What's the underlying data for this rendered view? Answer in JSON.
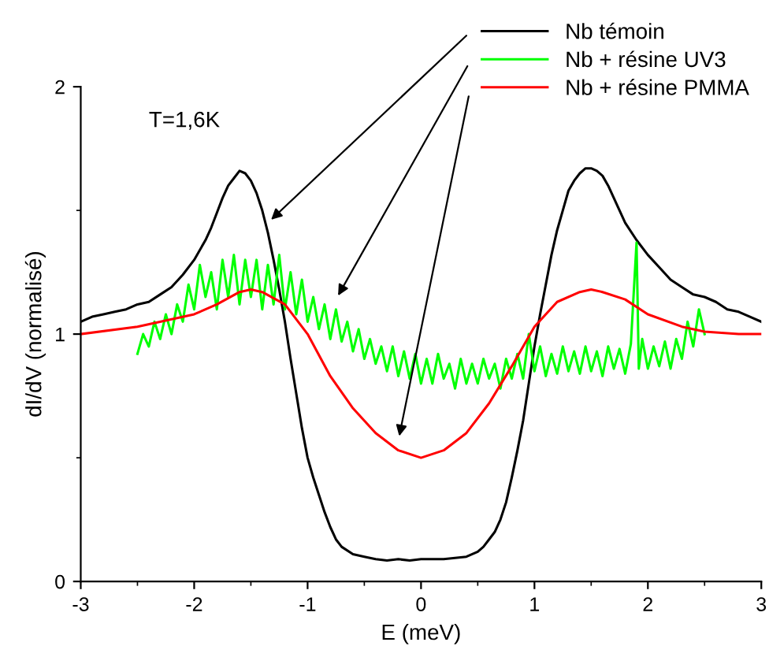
{
  "chart_data": {
    "type": "line",
    "xlabel": "E (meV)",
    "ylabel": "dI/dV (normalisé)",
    "annotations": [
      "T=1,6K"
    ],
    "xlim": [
      -3,
      3
    ],
    "xticks": [
      -3,
      -2,
      -1,
      0,
      1,
      2,
      3
    ],
    "ylim": [
      0,
      2
    ],
    "yticks": [
      0,
      1,
      2
    ],
    "grid": false,
    "legend": "top right",
    "marker": "none",
    "line_style": "solid",
    "series": [
      {
        "name": "Nb témoin",
        "color": "#000000",
        "x": [
          -3,
          -2.9,
          -2.8,
          -2.7,
          -2.6,
          -2.5,
          -2.4,
          -2.3,
          -2.2,
          -2.1,
          -2.0,
          -1.9,
          -1.85,
          -1.8,
          -1.75,
          -1.7,
          -1.65,
          -1.6,
          -1.55,
          -1.5,
          -1.45,
          -1.4,
          -1.35,
          -1.3,
          -1.25,
          -1.2,
          -1.15,
          -1.1,
          -1.05,
          -1.0,
          -0.95,
          -0.9,
          -0.85,
          -0.8,
          -0.75,
          -0.7,
          -0.6,
          -0.5,
          -0.4,
          -0.3,
          -0.2,
          -0.1,
          0,
          0.1,
          0.2,
          0.3,
          0.4,
          0.5,
          0.55,
          0.6,
          0.65,
          0.7,
          0.75,
          0.8,
          0.85,
          0.9,
          0.95,
          1.0,
          1.05,
          1.1,
          1.15,
          1.2,
          1.25,
          1.3,
          1.35,
          1.4,
          1.45,
          1.5,
          1.55,
          1.6,
          1.65,
          1.7,
          1.75,
          1.8,
          1.9,
          2.0,
          2.1,
          2.2,
          2.3,
          2.4,
          2.5,
          2.6,
          2.7,
          2.8,
          2.9,
          3.0
        ],
        "values": [
          1.05,
          1.07,
          1.08,
          1.09,
          1.1,
          1.12,
          1.13,
          1.16,
          1.19,
          1.24,
          1.3,
          1.38,
          1.43,
          1.49,
          1.55,
          1.6,
          1.63,
          1.66,
          1.65,
          1.62,
          1.57,
          1.5,
          1.41,
          1.3,
          1.18,
          1.05,
          0.9,
          0.76,
          0.62,
          0.5,
          0.42,
          0.35,
          0.28,
          0.22,
          0.17,
          0.14,
          0.11,
          0.1,
          0.09,
          0.085,
          0.09,
          0.085,
          0.09,
          0.09,
          0.09,
          0.095,
          0.1,
          0.12,
          0.14,
          0.17,
          0.2,
          0.25,
          0.32,
          0.42,
          0.53,
          0.65,
          0.8,
          0.95,
          1.08,
          1.2,
          1.32,
          1.42,
          1.5,
          1.58,
          1.62,
          1.65,
          1.67,
          1.67,
          1.66,
          1.64,
          1.6,
          1.55,
          1.5,
          1.45,
          1.38,
          1.32,
          1.27,
          1.22,
          1.19,
          1.16,
          1.15,
          1.13,
          1.1,
          1.09,
          1.07,
          1.05
        ]
      },
      {
        "name": "Nb + résine UV3",
        "color": "#00ff00",
        "x": [
          -2.5,
          -2.45,
          -2.4,
          -2.35,
          -2.3,
          -2.25,
          -2.2,
          -2.15,
          -2.1,
          -2.05,
          -2.0,
          -1.95,
          -1.9,
          -1.85,
          -1.8,
          -1.75,
          -1.7,
          -1.65,
          -1.6,
          -1.55,
          -1.5,
          -1.45,
          -1.4,
          -1.35,
          -1.3,
          -1.25,
          -1.2,
          -1.15,
          -1.1,
          -1.05,
          -1.0,
          -0.95,
          -0.9,
          -0.85,
          -0.8,
          -0.75,
          -0.7,
          -0.65,
          -0.6,
          -0.55,
          -0.5,
          -0.45,
          -0.4,
          -0.35,
          -0.3,
          -0.25,
          -0.2,
          -0.15,
          -0.1,
          -0.05,
          0,
          0.05,
          0.1,
          0.15,
          0.2,
          0.25,
          0.3,
          0.35,
          0.4,
          0.45,
          0.5,
          0.55,
          0.6,
          0.65,
          0.7,
          0.75,
          0.8,
          0.85,
          0.9,
          0.95,
          1.0,
          1.05,
          1.1,
          1.15,
          1.2,
          1.25,
          1.3,
          1.35,
          1.4,
          1.45,
          1.5,
          1.55,
          1.6,
          1.65,
          1.7,
          1.75,
          1.8,
          1.85,
          1.9,
          1.92,
          1.95,
          2.0,
          2.05,
          2.1,
          2.15,
          2.2,
          2.25,
          2.3,
          2.35,
          2.4,
          2.45,
          2.5
        ],
        "values": [
          0.92,
          1.0,
          0.95,
          1.05,
          0.98,
          1.08,
          1.0,
          1.12,
          1.05,
          1.2,
          1.1,
          1.28,
          1.15,
          1.25,
          1.1,
          1.3,
          1.15,
          1.32,
          1.12,
          1.3,
          1.15,
          1.3,
          1.1,
          1.28,
          1.12,
          1.32,
          1.1,
          1.25,
          1.08,
          1.22,
          1.05,
          1.15,
          1.02,
          1.12,
          0.98,
          1.1,
          0.97,
          1.05,
          0.93,
          1.02,
          0.9,
          0.98,
          0.88,
          0.95,
          0.85,
          0.95,
          0.83,
          0.93,
          0.82,
          0.92,
          0.8,
          0.9,
          0.8,
          0.92,
          0.82,
          0.88,
          0.78,
          0.9,
          0.8,
          0.88,
          0.8,
          0.9,
          0.82,
          0.88,
          0.78,
          0.9,
          0.82,
          0.92,
          0.82,
          1.0,
          0.85,
          0.95,
          0.83,
          0.92,
          0.84,
          0.95,
          0.85,
          0.93,
          0.84,
          0.95,
          0.85,
          0.93,
          0.83,
          0.95,
          0.86,
          0.94,
          0.84,
          0.96,
          1.37,
          0.86,
          0.98,
          0.86,
          0.95,
          0.87,
          0.97,
          0.86,
          0.98,
          0.9,
          1.05,
          0.95,
          1.1,
          1.0
        ]
      },
      {
        "name": "Nb + résine PMMA",
        "color": "#ff0000",
        "x": [
          -3,
          -2.5,
          -2.0,
          -1.8,
          -1.6,
          -1.5,
          -1.4,
          -1.2,
          -1.0,
          -0.8,
          -0.6,
          -0.4,
          -0.2,
          0,
          0.2,
          0.4,
          0.6,
          0.8,
          1.0,
          1.2,
          1.4,
          1.5,
          1.6,
          1.8,
          2.0,
          2.3,
          2.5,
          2.8,
          3.0
        ],
        "values": [
          1.0,
          1.03,
          1.08,
          1.12,
          1.17,
          1.18,
          1.17,
          1.12,
          1.0,
          0.83,
          0.7,
          0.6,
          0.53,
          0.5,
          0.53,
          0.6,
          0.72,
          0.87,
          1.03,
          1.13,
          1.17,
          1.18,
          1.17,
          1.14,
          1.08,
          1.03,
          1.01,
          1.0,
          1.0
        ]
      }
    ]
  }
}
